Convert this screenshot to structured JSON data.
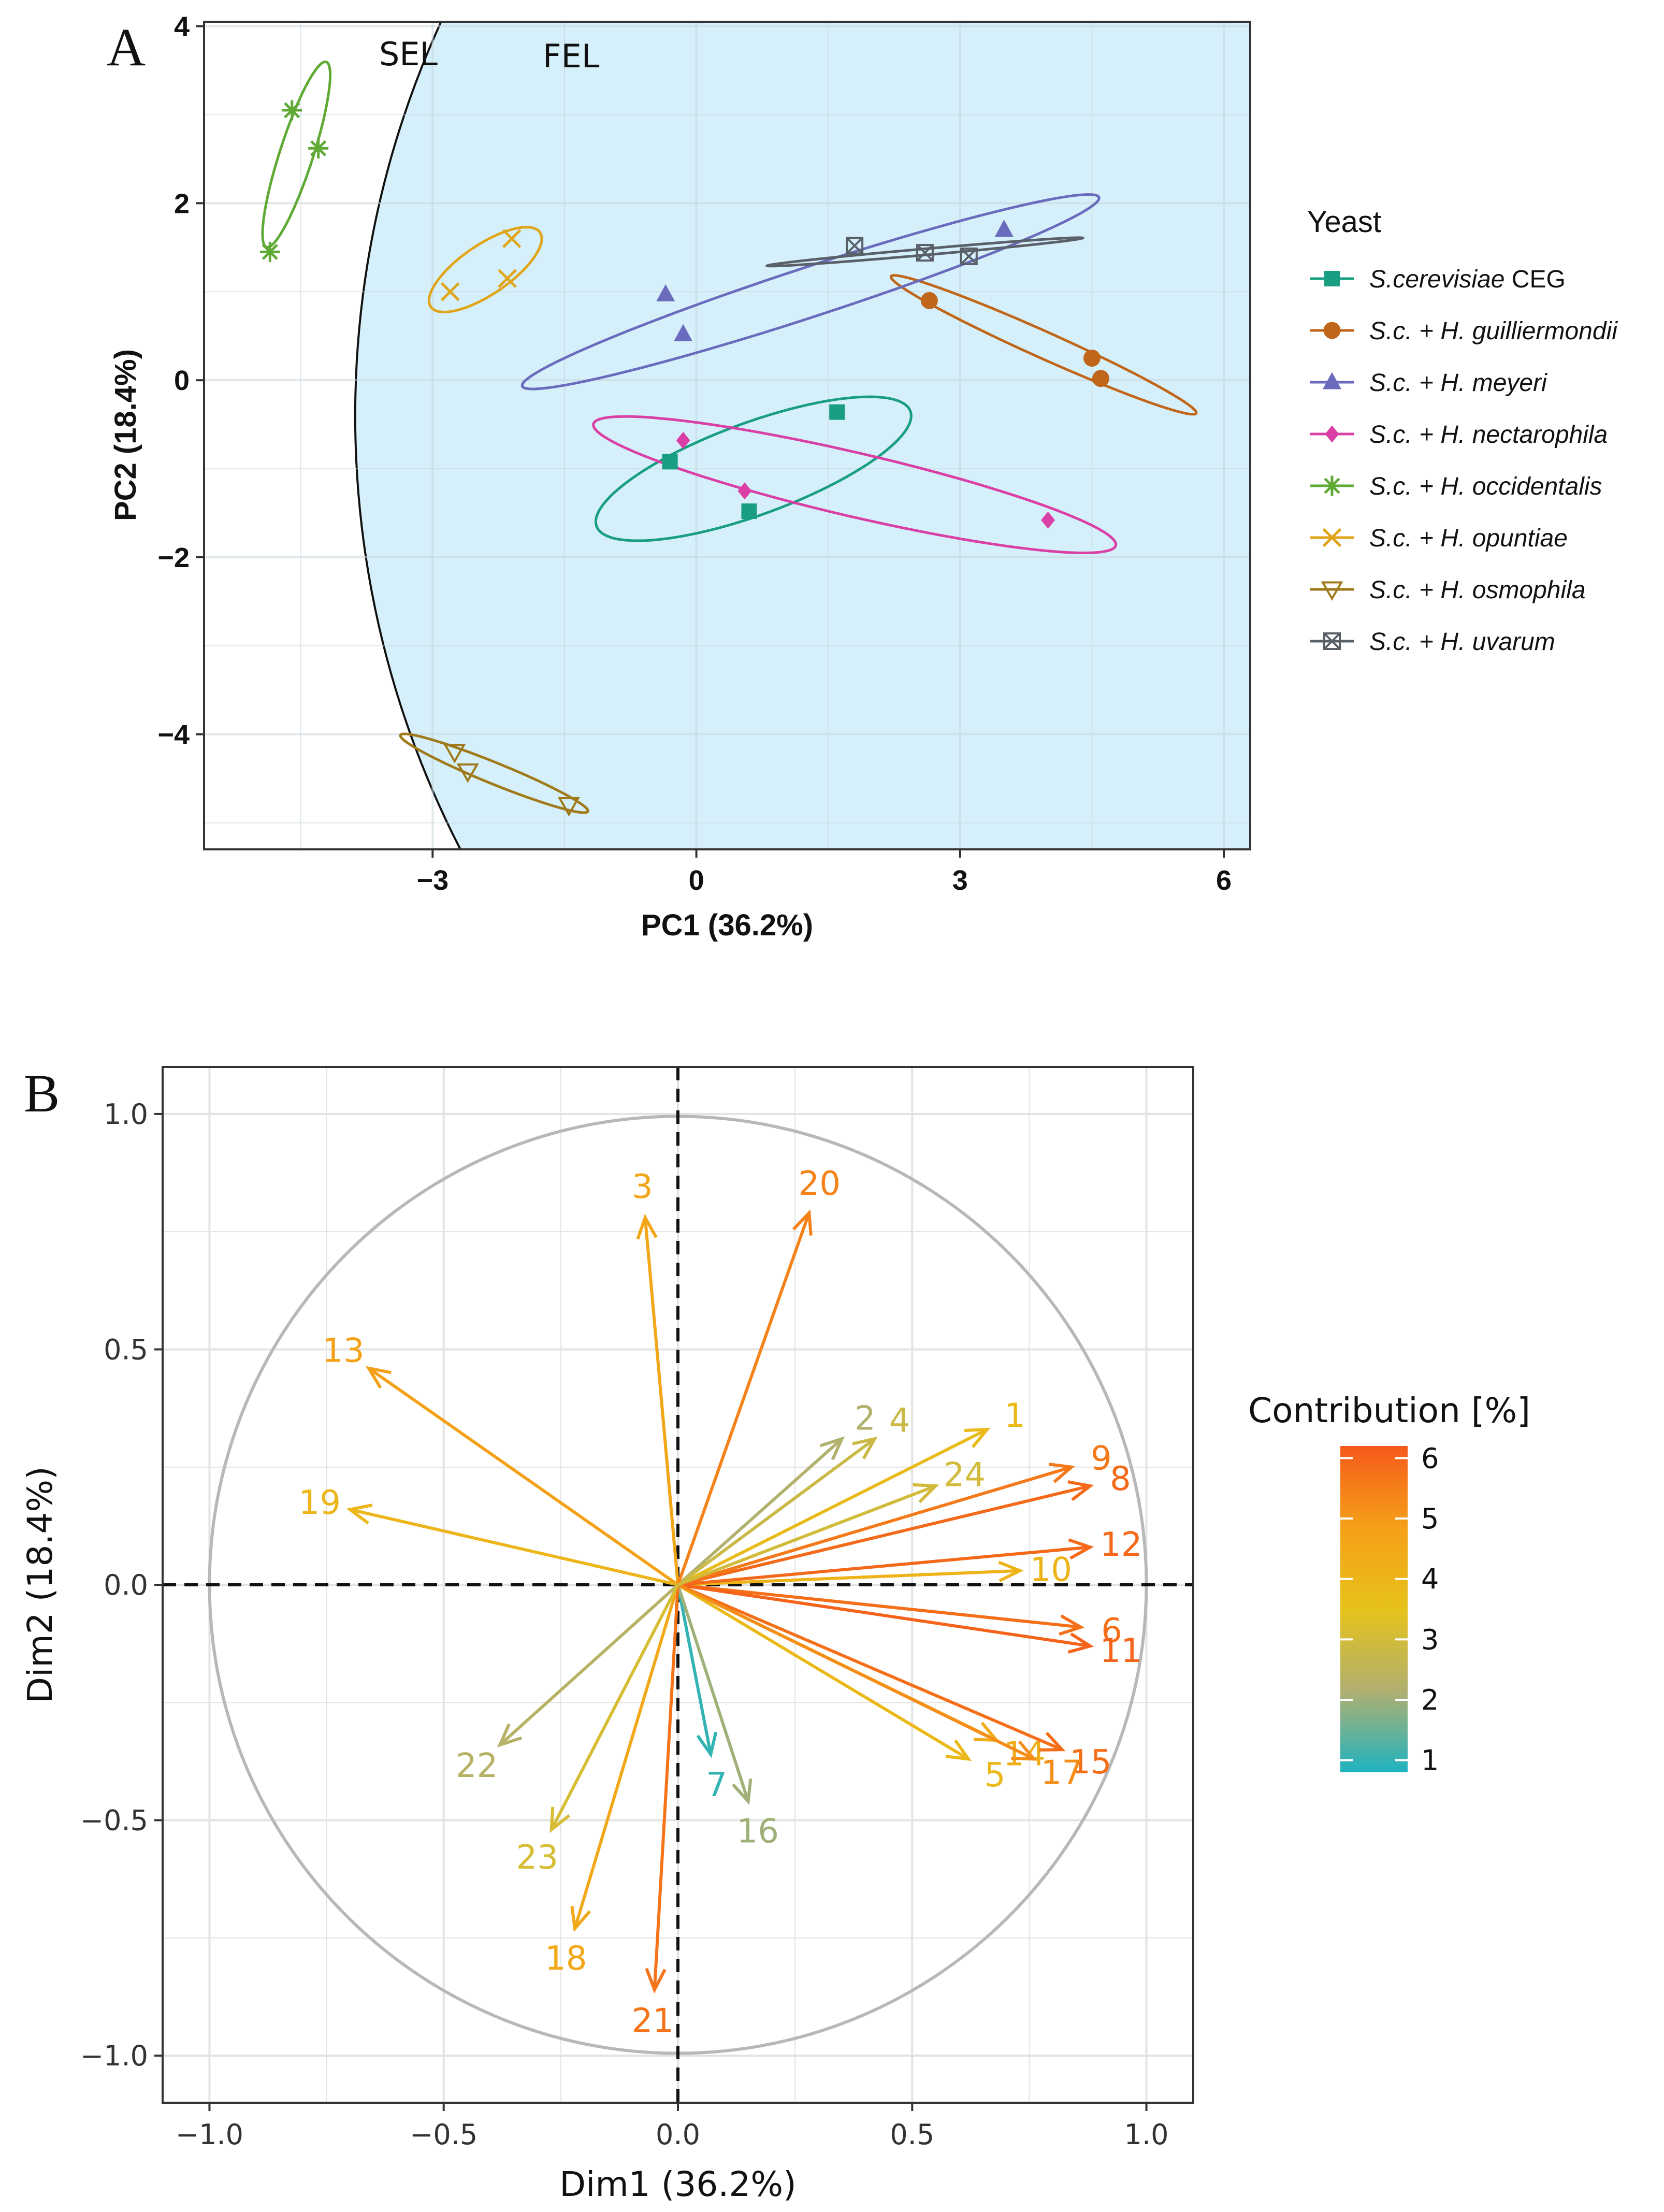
{
  "chart_data": [
    {
      "panel": "A",
      "type": "scatter",
      "xlabel": "PC1 (36.2%)",
      "ylabel": "PC2 (18.4%)",
      "xlim": [
        -5.6,
        6.3
      ],
      "ylim": [
        -5.3,
        4.05
      ],
      "xticks": [
        -3,
        0,
        3,
        6
      ],
      "xtick_labels": [
        "−3",
        "0",
        "3",
        "6"
      ],
      "yticks": [
        -4,
        -2,
        0,
        2,
        4
      ],
      "ytick_labels": [
        "−4",
        "−2",
        "0",
        "2",
        "4"
      ],
      "regions": [
        {
          "label": "SEL",
          "fill": "none"
        },
        {
          "label": "FEL",
          "fill": "#d5f0fa"
        }
      ],
      "legend": {
        "title": "Yeast",
        "position": "right"
      },
      "series": [
        {
          "name": "S.cerevisiae CEG",
          "name_italic": "S.cerevisiae",
          "name_plain": " CEG",
          "color": "#1a9e82",
          "marker": "square",
          "points": [
            [
              -0.3,
              -0.92
            ],
            [
              0.6,
              -1.48
            ],
            [
              1.6,
              -0.36
            ]
          ],
          "ellipse": {
            "cx": 0.65,
            "cy": -1.0,
            "rx": 1.9,
            "ry": 0.52,
            "angle": 20
          }
        },
        {
          "name": "S.c. + H. guilliermondii",
          "color": "#c0661a",
          "marker": "circle",
          "points": [
            [
              2.65,
              0.9
            ],
            [
              4.5,
              0.25
            ],
            [
              4.6,
              0.02
            ]
          ],
          "ellipse": {
            "cx": 3.95,
            "cy": 0.4,
            "rx": 1.9,
            "ry": 0.15,
            "angle": -24
          }
        },
        {
          "name": "S.c. + H. meyeri",
          "color": "#6a6bbd",
          "marker": "triangle",
          "points": [
            [
              -0.35,
              0.97
            ],
            [
              -0.15,
              0.52
            ],
            [
              3.5,
              1.7
            ]
          ],
          "ellipse": {
            "cx": 1.3,
            "cy": 1.0,
            "rx": 3.45,
            "ry": 0.28,
            "angle": 18
          }
        },
        {
          "name": "S.c. + H. nectarophila",
          "color": "#d93fa5",
          "marker": "diamond",
          "points": [
            [
              -0.15,
              -0.68
            ],
            [
              0.55,
              -1.25
            ],
            [
              4.0,
              -1.58
            ]
          ],
          "ellipse": {
            "cx": 1.8,
            "cy": -1.18,
            "rx": 3.05,
            "ry": 0.36,
            "angle": -13
          }
        },
        {
          "name": "S.c. + H. occidentalis",
          "color": "#5faa35",
          "marker": "asterisk",
          "points": [
            [
              -4.85,
              1.45
            ],
            [
              -4.6,
              3.05
            ],
            [
              -4.3,
              2.62
            ]
          ],
          "ellipse": {
            "cx": -4.55,
            "cy": 2.55,
            "rx": 1.1,
            "ry": 0.19,
            "angle": 72
          }
        },
        {
          "name": "S.c. + H. opuntiae",
          "color": "#e0a51a",
          "marker": "x",
          "points": [
            [
              -2.8,
              1.0
            ],
            [
              -2.15,
              1.15
            ],
            [
              -2.1,
              1.6
            ]
          ],
          "ellipse": {
            "cx": -2.4,
            "cy": 1.25,
            "rx": 0.75,
            "ry": 0.28,
            "angle": 34
          }
        },
        {
          "name": "S.c. + H. osmophila",
          "color": "#a07a1a",
          "marker": "triangle-down",
          "points": [
            [
              -2.75,
              -4.2
            ],
            [
              -2.6,
              -4.42
            ],
            [
              -1.45,
              -4.8
            ]
          ],
          "ellipse": {
            "cx": -2.3,
            "cy": -4.44,
            "rx": 1.15,
            "ry": 0.12,
            "angle": -22
          }
        },
        {
          "name": "S.c. + H. uvarum",
          "color": "#5a6068",
          "marker": "boxtimes",
          "points": [
            [
              1.8,
              1.52
            ],
            [
              2.6,
              1.44
            ],
            [
              3.1,
              1.4
            ]
          ],
          "ellipse": {
            "cx": 2.6,
            "cy": 1.45,
            "rx": 1.8,
            "ry": 0.035,
            "angle": 5
          }
        }
      ]
    },
    {
      "panel": "B",
      "type": "scatter",
      "subtype": "correlation-circle",
      "xlabel": "Dim1 (36.2%)",
      "ylabel": "Dim2 (18.4%)",
      "xlim": [
        -1.1,
        1.1
      ],
      "ylim": [
        -1.1,
        1.1
      ],
      "xticks": [
        -1.0,
        -0.5,
        0.0,
        0.5,
        1.0
      ],
      "xtick_labels": [
        "−1.0",
        "−0.5",
        "0.0",
        "0.5",
        "1.0"
      ],
      "yticks": [
        -1.0,
        -0.5,
        0.0,
        0.5,
        1.0
      ],
      "ytick_labels": [
        "−1.0",
        "−0.5",
        "0.0",
        "0.5",
        "1.0"
      ],
      "colorbar": {
        "title": "Contribution [%]",
        "min": 0.8,
        "max": 6.2,
        "ticks": [
          1,
          2,
          3,
          4,
          5,
          6
        ],
        "tick_labels": [
          "1",
          "2",
          "3",
          "4",
          "5",
          "6"
        ],
        "colors": [
          "#1fb3c0",
          "#b0b070",
          "#e6c21a",
          "#f5a018",
          "#f55a1a"
        ]
      },
      "variables": [
        {
          "label": "1",
          "x": 0.66,
          "y": 0.33,
          "contrib": 3.8
        },
        {
          "label": "2",
          "x": 0.35,
          "y": 0.31,
          "contrib": 2.2
        },
        {
          "label": "3",
          "x": -0.07,
          "y": 0.78,
          "contrib": 4.6
        },
        {
          "label": "4",
          "x": 0.42,
          "y": 0.31,
          "contrib": 2.8
        },
        {
          "label": "5",
          "x": 0.62,
          "y": -0.37,
          "contrib": 3.9
        },
        {
          "label": "6",
          "x": 0.86,
          "y": -0.09,
          "contrib": 5.8
        },
        {
          "label": "7",
          "x": 0.07,
          "y": -0.36,
          "contrib": 1.0
        },
        {
          "label": "8",
          "x": 0.88,
          "y": 0.21,
          "contrib": 5.9
        },
        {
          "label": "9",
          "x": 0.84,
          "y": 0.25,
          "contrib": 5.6
        },
        {
          "label": "10",
          "x": 0.73,
          "y": 0.03,
          "contrib": 4.1
        },
        {
          "label": "11",
          "x": 0.88,
          "y": -0.13,
          "contrib": 6.0
        },
        {
          "label": "12",
          "x": 0.88,
          "y": 0.08,
          "contrib": 5.9
        },
        {
          "label": "13",
          "x": -0.66,
          "y": 0.46,
          "contrib": 4.8
        },
        {
          "label": "14",
          "x": 0.68,
          "y": -0.33,
          "contrib": 4.3
        },
        {
          "label": "15",
          "x": 0.82,
          "y": -0.35,
          "contrib": 5.8
        },
        {
          "label": "16",
          "x": 0.15,
          "y": -0.46,
          "contrib": 2.0
        },
        {
          "label": "17",
          "x": 0.76,
          "y": -0.37,
          "contrib": 5.2
        },
        {
          "label": "18",
          "x": -0.22,
          "y": -0.73,
          "contrib": 4.5
        },
        {
          "label": "19",
          "x": -0.7,
          "y": 0.16,
          "contrib": 4.0
        },
        {
          "label": "20",
          "x": 0.28,
          "y": 0.79,
          "contrib": 5.4
        },
        {
          "label": "21",
          "x": -0.05,
          "y": -0.86,
          "contrib": 5.7
        },
        {
          "label": "22",
          "x": -0.38,
          "y": -0.34,
          "contrib": 2.3
        },
        {
          "label": "23",
          "x": -0.27,
          "y": -0.52,
          "contrib": 3.1
        },
        {
          "label": "24",
          "x": 0.55,
          "y": 0.21,
          "contrib": 3.0
        }
      ],
      "reference_lines": {
        "x": 0,
        "y": 0,
        "style": "dashed"
      },
      "unit_circle": true
    }
  ]
}
